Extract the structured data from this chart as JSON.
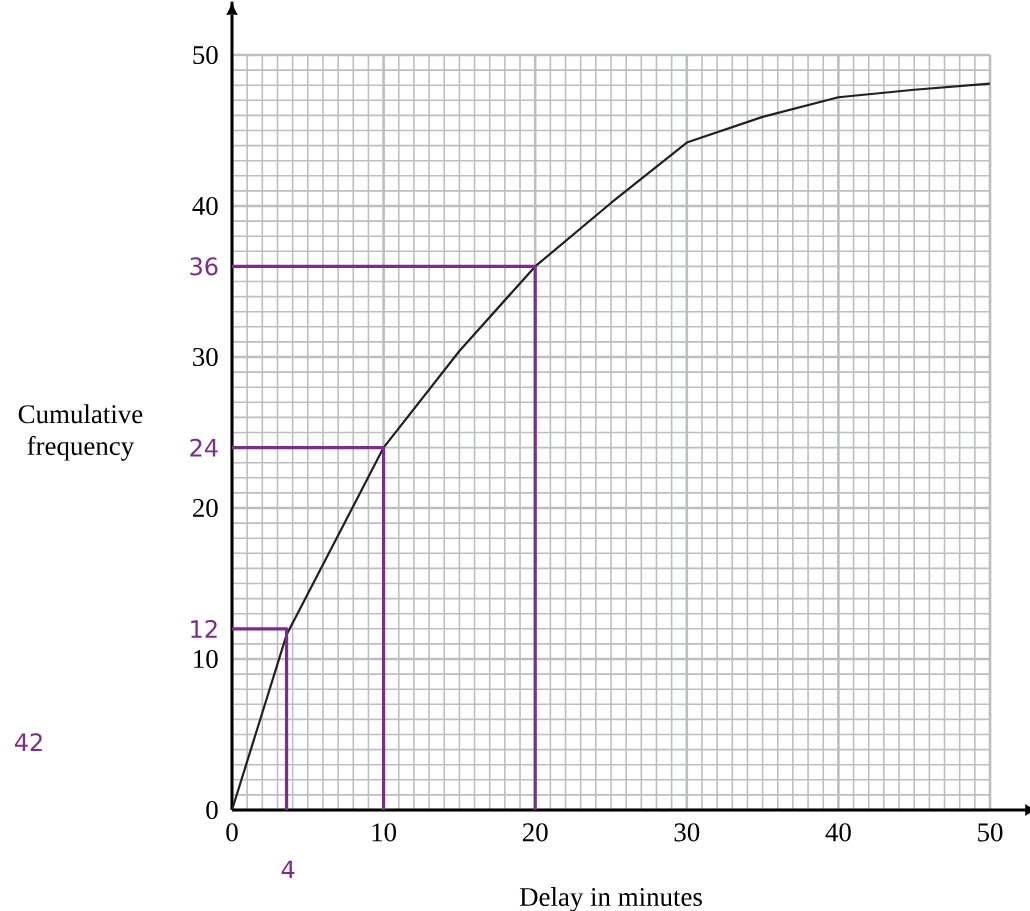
{
  "chart_data": {
    "type": "line",
    "xlabel": "Delay in minutes",
    "ylabel": "Cumulative frequency",
    "xlim": [
      0,
      50
    ],
    "ylim": [
      0,
      50
    ],
    "xticks": [
      0,
      10,
      20,
      30,
      40,
      50
    ],
    "yticks": [
      0,
      10,
      20,
      30,
      40,
      50
    ],
    "grid": true,
    "marker": "none",
    "line_style": "solid",
    "series": [
      {
        "color": "#231f20",
        "x": [
          0,
          3.6,
          10,
          15,
          20,
          25,
          30,
          35,
          40,
          45,
          50
        ],
        "values": [
          0,
          11.6,
          24,
          30.4,
          36,
          40.2,
          44.2,
          45.9,
          47.2,
          47.7,
          48.1
        ]
      },
      {
        "color": "#7b2d8e",
        "x": [
          0,
          3.6,
          3.6
        ],
        "values": [
          12,
          12,
          0
        ]
      },
      {
        "color": "#7b2d8e",
        "x": [
          0,
          10,
          10
        ],
        "values": [
          24,
          24,
          0
        ]
      },
      {
        "color": "#7b2d8e",
        "x": [
          0,
          20,
          20
        ],
        "values": [
          36,
          36,
          0
        ]
      }
    ],
    "annotations": [
      "36",
      "24",
      "12",
      "4",
      "42"
    ]
  }
}
